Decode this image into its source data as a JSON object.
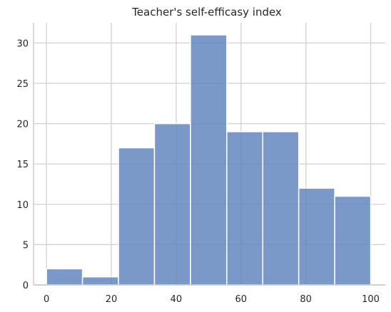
{
  "chart_data": {
    "type": "bar",
    "title": "Teacher's self-efficasy index",
    "xlabel": "",
    "ylabel": "",
    "bins": [
      {
        "start": 0,
        "end": 11.1,
        "count": 2
      },
      {
        "start": 11.1,
        "end": 22.2,
        "count": 1
      },
      {
        "start": 22.2,
        "end": 33.3,
        "count": 17
      },
      {
        "start": 33.3,
        "end": 44.4,
        "count": 20
      },
      {
        "start": 44.4,
        "end": 55.6,
        "count": 31
      },
      {
        "start": 55.6,
        "end": 66.7,
        "count": 19
      },
      {
        "start": 66.7,
        "end": 77.8,
        "count": 19
      },
      {
        "start": 77.8,
        "end": 88.9,
        "count": 12
      },
      {
        "start": 88.9,
        "end": 100,
        "count": 11
      }
    ],
    "xlim": [
      -4,
      104.5
    ],
    "ylim": [
      0,
      32.5
    ],
    "x_ticks": [
      0,
      20,
      40,
      60,
      80,
      100
    ],
    "y_ticks": [
      0,
      5,
      10,
      15,
      20,
      25,
      30
    ],
    "grid": true,
    "colors": {
      "bar": "#5a7fba",
      "bar_edge": "#ffffff",
      "grid": "#d4d4d4",
      "axis": "#c8c8c8"
    }
  }
}
